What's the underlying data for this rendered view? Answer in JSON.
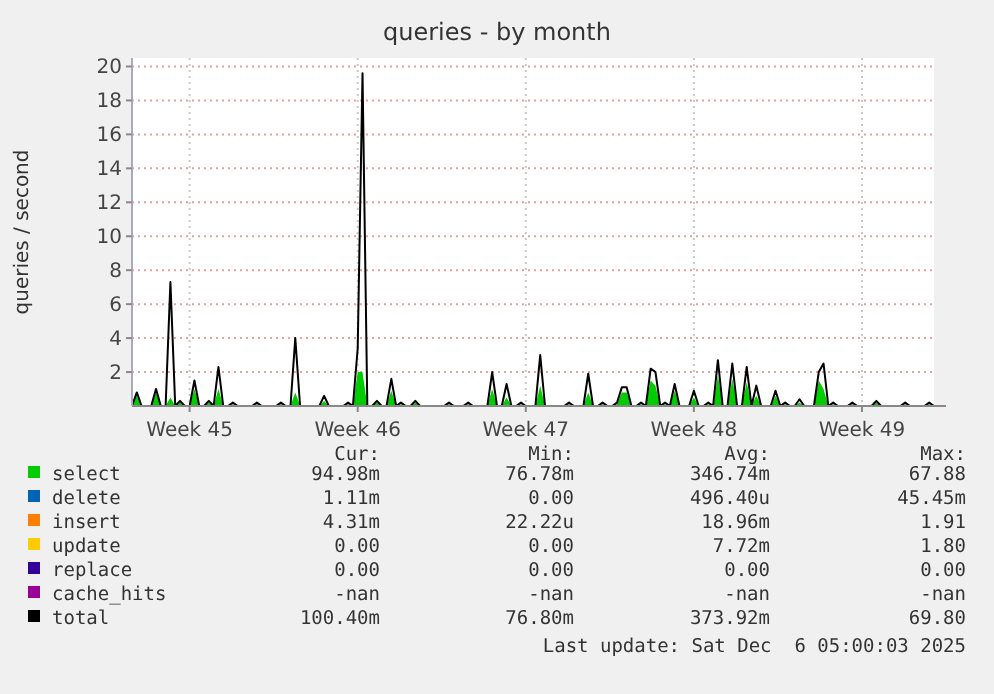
{
  "chart_data": {
    "type": "area",
    "title": "queries - by month",
    "ylabel": "queries / second",
    "categories": [
      null,
      null,
      null,
      null,
      null,
      null,
      null,
      null,
      null,
      null,
      null,
      null,
      "Week 45",
      null,
      null,
      null,
      null,
      null,
      null,
      null,
      null,
      null,
      null,
      null,
      null,
      null,
      null,
      null,
      null,
      null,
      null,
      null,
      null,
      null,
      null,
      null,
      null,
      null,
      null,
      null,
      null,
      null,
      null,
      null,
      null,
      null,
      null,
      "Week 46",
      null,
      null,
      null,
      null,
      null,
      null,
      null,
      null,
      null,
      null,
      null,
      null,
      null,
      null,
      null,
      null,
      null,
      null,
      null,
      null,
      null,
      null,
      null,
      null,
      null,
      null,
      null,
      null,
      null,
      null,
      null,
      null,
      null,
      null,
      "Week 47",
      null,
      null,
      null,
      null,
      null,
      null,
      null,
      null,
      null,
      null,
      null,
      null,
      null,
      null,
      null,
      null,
      null,
      null,
      null,
      null,
      null,
      null,
      null,
      null,
      null,
      null,
      null,
      null,
      null,
      null,
      null,
      null,
      null,
      null,
      "Week 48",
      null,
      null,
      null,
      null,
      null,
      null,
      null,
      null,
      null,
      null,
      null,
      null,
      null,
      null,
      null,
      null,
      null,
      null,
      null,
      null,
      null,
      null,
      null,
      null,
      null,
      null,
      null,
      null,
      null,
      null,
      null,
      null,
      null,
      null,
      "Week 49",
      null,
      null,
      null,
      null,
      null,
      null,
      null,
      null,
      null,
      null,
      null,
      null,
      null,
      null,
      null
    ],
    "ylim": [
      0,
      20.5
    ],
    "yticks": [
      2,
      4,
      6,
      8,
      10,
      12,
      14,
      16,
      18,
      20
    ],
    "grid": true,
    "legend": "bottom",
    "series": [
      {
        "name": "select",
        "color": "#00cc00",
        "values": [
          0,
          0.6,
          0,
          0,
          0,
          0.8,
          0,
          0,
          0.5,
          0,
          0.2,
          0,
          0,
          1.0,
          0,
          0,
          0.2,
          0,
          1.0,
          0,
          0,
          0.1,
          0,
          0,
          0,
          0,
          0.1,
          0,
          0,
          0,
          0,
          0.1,
          0,
          0,
          0.8,
          0,
          0,
          0,
          0,
          0,
          0.3,
          0,
          0,
          0,
          0,
          0.1,
          0,
          2.0,
          2.0,
          0,
          0,
          0.2,
          0,
          0,
          0.9,
          0,
          0.1,
          0,
          0,
          0.2,
          0,
          0,
          0,
          0,
          0,
          0,
          0.1,
          0,
          0,
          0,
          0.1,
          0,
          0,
          0,
          0,
          1.0,
          0,
          0,
          0.5,
          0,
          0,
          0.1,
          0,
          0,
          0,
          1.2,
          0,
          0,
          0,
          0,
          0,
          0.1,
          0,
          0,
          0,
          0.8,
          0,
          0,
          0.1,
          0,
          0,
          0.1,
          0.8,
          0.8,
          0,
          0,
          0.1,
          0,
          1.5,
          1.2,
          0,
          0.1,
          0,
          0.9,
          0,
          0,
          0,
          0.5,
          0,
          0,
          0.1,
          0,
          1.8,
          0,
          0,
          1.6,
          0,
          0,
          1.4,
          0,
          0.6,
          0,
          0,
          0,
          0.6,
          0,
          0.1,
          0,
          0,
          0.2,
          0,
          0,
          0,
          1.5,
          1.0,
          0,
          0.1,
          0,
          0,
          0,
          0.1,
          0,
          0,
          0,
          0,
          0.2,
          0,
          0,
          0,
          0,
          0,
          0.1,
          0,
          0,
          0,
          0,
          0.1,
          0
        ]
      },
      {
        "name": "delete",
        "color": "#0066b3",
        "type": "line",
        "values": [
          null,
          null,
          null,
          null,
          null,
          null,
          null,
          null,
          null,
          null,
          null,
          null,
          null,
          null,
          null,
          null,
          null,
          null,
          null,
          null,
          null,
          null,
          null,
          null,
          null,
          null,
          null,
          null,
          null,
          null,
          null,
          null,
          null,
          null,
          null,
          null,
          null,
          null,
          null,
          null,
          null,
          null,
          null,
          null,
          null,
          null,
          null,
          null,
          null,
          null,
          null,
          null,
          null,
          null,
          null,
          null,
          null,
          null,
          null,
          null,
          null,
          null,
          null,
          null,
          null,
          null,
          null,
          null,
          null,
          null,
          null,
          null,
          null,
          null,
          null,
          null,
          null,
          null,
          null,
          null,
          null,
          null,
          null,
          null,
          null,
          null,
          null,
          null,
          null,
          null,
          null,
          null,
          null,
          null,
          null,
          null,
          null,
          null,
          null,
          null,
          null,
          null,
          null,
          null,
          null,
          null,
          null,
          null,
          null,
          null,
          null,
          null,
          null,
          null,
          null,
          null,
          null,
          null,
          null,
          null,
          null,
          null,
          null,
          null,
          null,
          null,
          null,
          null,
          null,
          null,
          null,
          null,
          null,
          null,
          null,
          null,
          null,
          null,
          null,
          null,
          null,
          null,
          null,
          null,
          null,
          null,
          null,
          null,
          null,
          null,
          null,
          null,
          null,
          null,
          null,
          null,
          null,
          null,
          null,
          null,
          null,
          null,
          null,
          null,
          null,
          null,
          null,
          null
        ]
      },
      {
        "name": "insert",
        "color": "#ff8000",
        "type": "line",
        "values": [
          null,
          null,
          null,
          null,
          null,
          null,
          null,
          null,
          null,
          null,
          null,
          null,
          null,
          null,
          null,
          null,
          null,
          null,
          null,
          null,
          null,
          null,
          null,
          null,
          null,
          null,
          null,
          null,
          null,
          null,
          null,
          null,
          null,
          null,
          null,
          null,
          null,
          null,
          null,
          null,
          null,
          null,
          null,
          null,
          null,
          null,
          null,
          null,
          null,
          null,
          null,
          null,
          null,
          null,
          null,
          null,
          null,
          null,
          null,
          null,
          null,
          null,
          null,
          null,
          null,
          null,
          null,
          null,
          null,
          null,
          null,
          null,
          null,
          null,
          null,
          null,
          null,
          null,
          null,
          null,
          null,
          null,
          null,
          null,
          null,
          null,
          null,
          null,
          null,
          null,
          null,
          null,
          null,
          null,
          null,
          null,
          null,
          null,
          null,
          null,
          null,
          null,
          null,
          null,
          null,
          null,
          null,
          null,
          null,
          null,
          null,
          null,
          null,
          null,
          null,
          null,
          null,
          null,
          null,
          null,
          null,
          null,
          null,
          null,
          null,
          null,
          null,
          null,
          null,
          null,
          null,
          null,
          null,
          null,
          null,
          null,
          null,
          null,
          null,
          null,
          null,
          null,
          null,
          null,
          null,
          null,
          null,
          null,
          null,
          null,
          null,
          null,
          null,
          null,
          null,
          null,
          null,
          null,
          null,
          null,
          null,
          null,
          null,
          null,
          null,
          null,
          null,
          null
        ]
      },
      {
        "name": "update",
        "color": "#ffcc00",
        "type": "line",
        "values": [
          null,
          null,
          null,
          null,
          null,
          null,
          null,
          null,
          null,
          null,
          null,
          null,
          null,
          null,
          null,
          null,
          null,
          null,
          null,
          null,
          null,
          null,
          null,
          null,
          null,
          null,
          null,
          null,
          null,
          null,
          null,
          null,
          null,
          null,
          null,
          null,
          null,
          null,
          null,
          null,
          null,
          null,
          null,
          null,
          null,
          null,
          null,
          null,
          null,
          null,
          null,
          null,
          null,
          null,
          null,
          null,
          null,
          null,
          null,
          null,
          null,
          null,
          null,
          null,
          null,
          null,
          null,
          null,
          null,
          null,
          null,
          null,
          null,
          null,
          null,
          null,
          null,
          null,
          null,
          null,
          null,
          null,
          null,
          null,
          null,
          null,
          null,
          null,
          null,
          null,
          null,
          null,
          null,
          null,
          null,
          null,
          null,
          null,
          null,
          null,
          null,
          null,
          null,
          null,
          null,
          null,
          null,
          null,
          null,
          null,
          null,
          null,
          null,
          null,
          null,
          null,
          null,
          null,
          null,
          null,
          null,
          null,
          null,
          null,
          null,
          null,
          null,
          null,
          null,
          null,
          null,
          null,
          null,
          null,
          null,
          null,
          null,
          null,
          null,
          null,
          null,
          null,
          null,
          null,
          null,
          null,
          null,
          null,
          null,
          null,
          null,
          null,
          null,
          null,
          null,
          null,
          null,
          null,
          null,
          null,
          null,
          null,
          null,
          null,
          null,
          null,
          null,
          null
        ]
      },
      {
        "name": "replace",
        "color": "#330099",
        "type": "line",
        "values": [
          null,
          null,
          null,
          null,
          null,
          null,
          null,
          null,
          null,
          null,
          null,
          null,
          null,
          null,
          null,
          null,
          null,
          null,
          null,
          null,
          null,
          null,
          null,
          null,
          null,
          null,
          null,
          null,
          null,
          null,
          null,
          null,
          null,
          null,
          null,
          null,
          null,
          null,
          null,
          null,
          null,
          null,
          null,
          null,
          null,
          null,
          null,
          null,
          null,
          null,
          null,
          null,
          null,
          null,
          null,
          null,
          null,
          null,
          null,
          null,
          null,
          null,
          null,
          null,
          null,
          null,
          null,
          null,
          null,
          null,
          null,
          null,
          null,
          null,
          null,
          null,
          null,
          null,
          null,
          null,
          null,
          null,
          null,
          null,
          null,
          null,
          null,
          null,
          null,
          null,
          null,
          null,
          null,
          null,
          null,
          null,
          null,
          null,
          null,
          null,
          null,
          null,
          null,
          null,
          null,
          null,
          null,
          null,
          null,
          null,
          null,
          null,
          null,
          null,
          null,
          null,
          null,
          null,
          null,
          null,
          null,
          null,
          null,
          null,
          null,
          null,
          null,
          null,
          null,
          null,
          null,
          null,
          null,
          null,
          null,
          null,
          null,
          null,
          null,
          null,
          null,
          null,
          null,
          null,
          null,
          null,
          null,
          null,
          null,
          null,
          null,
          null,
          null,
          null,
          null,
          null,
          null,
          null,
          null,
          null,
          null,
          null,
          null,
          null,
          null,
          null,
          null,
          null
        ]
      },
      {
        "name": "cache_hits",
        "color": "#990099",
        "type": "line",
        "values": [
          null,
          null,
          null,
          null,
          null,
          null,
          null,
          null,
          null,
          null,
          null,
          null,
          null,
          null,
          null,
          null,
          null,
          null,
          null,
          null,
          null,
          null,
          null,
          null,
          null,
          null,
          null,
          null,
          null,
          null,
          null,
          null,
          null,
          null,
          null,
          null,
          null,
          null,
          null,
          null,
          null,
          null,
          null,
          null,
          null,
          null,
          null,
          null,
          null,
          null,
          null,
          null,
          null,
          null,
          null,
          null,
          null,
          null,
          null,
          null,
          null,
          null,
          null,
          null,
          null,
          null,
          null,
          null,
          null,
          null,
          null,
          null,
          null,
          null,
          null,
          null,
          null,
          null,
          null,
          null,
          null,
          null,
          null,
          null,
          null,
          null,
          null,
          null,
          null,
          null,
          null,
          null,
          null,
          null,
          null,
          null,
          null,
          null,
          null,
          null,
          null,
          null,
          null,
          null,
          null,
          null,
          null,
          null,
          null,
          null,
          null,
          null,
          null,
          null,
          null,
          null,
          null,
          null,
          null,
          null,
          null,
          null,
          null,
          null,
          null,
          null,
          null,
          null,
          null,
          null,
          null,
          null,
          null,
          null,
          null,
          null,
          null,
          null,
          null,
          null,
          null,
          null,
          null,
          null,
          null,
          null,
          null,
          null,
          null,
          null,
          null,
          null,
          null,
          null,
          null,
          null,
          null,
          null,
          null,
          null,
          null,
          null,
          null,
          null,
          null,
          null,
          null,
          null
        ]
      },
      {
        "name": "total",
        "color": "#000000",
        "type": "line",
        "values": [
          0,
          0.8,
          0,
          0,
          0,
          1.0,
          0,
          0,
          7.3,
          0,
          0.3,
          0,
          0,
          1.5,
          0,
          0,
          0.3,
          0,
          2.3,
          0,
          0,
          0.2,
          0,
          0,
          0,
          0,
          0.2,
          0,
          0,
          0,
          0,
          0.2,
          0,
          0,
          4.0,
          0,
          0,
          0,
          0,
          0,
          0.6,
          0,
          0,
          0,
          0,
          0.2,
          0,
          3.4,
          19.6,
          0,
          0,
          0.3,
          0,
          0,
          1.6,
          0,
          0.2,
          0,
          0,
          0.3,
          0,
          0,
          0,
          0,
          0,
          0,
          0.2,
          0,
          0,
          0,
          0.2,
          0,
          0,
          0,
          0,
          2.0,
          0,
          0,
          1.3,
          0,
          0,
          0.2,
          0,
          0,
          0,
          3.0,
          0,
          0,
          0,
          0,
          0,
          0.2,
          0,
          0,
          0,
          1.9,
          0,
          0,
          0.2,
          0,
          0,
          0.2,
          1.1,
          1.1,
          0,
          0,
          0.2,
          0,
          2.2,
          2.0,
          0,
          0.2,
          0,
          1.3,
          0,
          0,
          0,
          0.9,
          0,
          0,
          0.2,
          0,
          2.7,
          0,
          0,
          2.5,
          0,
          0,
          2.3,
          0,
          1.2,
          0,
          0,
          0,
          0.9,
          0,
          0.2,
          0,
          0,
          0.4,
          0,
          0,
          0,
          2.0,
          2.5,
          0,
          0.2,
          0,
          0,
          0,
          0.2,
          0,
          0,
          0,
          0,
          0.3,
          0,
          0,
          0,
          0,
          0,
          0.2,
          0,
          0,
          0,
          0,
          0.2,
          0
        ]
      }
    ],
    "annotations": [
      "Cur:",
      "Min:",
      "Avg:",
      "Max:",
      "94.98m",
      "76.78m",
      "346.74m",
      "67.88",
      "1.11m",
      "0.00",
      "496.40u",
      "45.45m",
      "4.31m",
      "22.22u",
      "18.96m",
      "1.91",
      "0.00",
      "0.00",
      "7.72m",
      "1.80",
      "0.00",
      "0.00",
      "0.00",
      "0.00",
      "-nan",
      "-nan",
      "-nan",
      "-nan",
      "100.40m",
      "76.80m",
      "373.92m",
      "69.80",
      "Last update: Sat Dec  6 05:00:03 2025"
    ]
  }
}
